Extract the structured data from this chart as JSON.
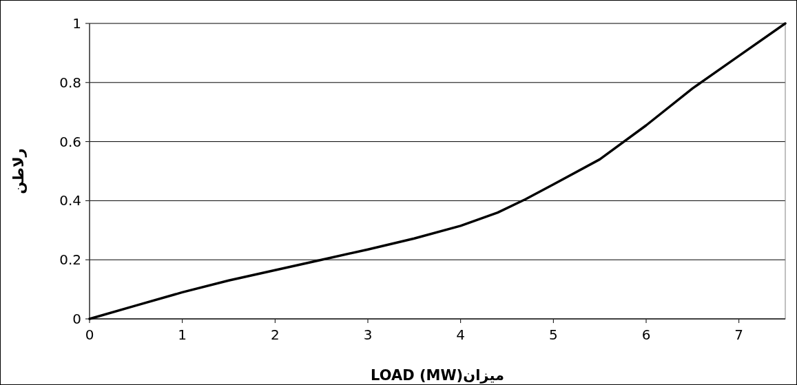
{
  "chart_data": {
    "type": "line",
    "xlabel": "LOAD (MW)میزان",
    "ylabel": "رلاطن",
    "x": [
      0,
      0.5,
      1,
      1.5,
      2,
      2.5,
      3,
      3.5,
      4,
      4.4,
      4.7,
      5,
      5.5,
      6,
      6.5,
      7,
      7.5
    ],
    "series": [
      {
        "color": "#000000",
        "values": [
          0,
          0.045,
          0.09,
          0.13,
          0.165,
          0.2,
          0.235,
          0.272,
          0.315,
          0.36,
          0.405,
          0.455,
          0.54,
          0.655,
          0.78,
          0.89,
          1.0
        ]
      }
    ],
    "xlim": [
      0,
      7.5
    ],
    "xticks": [
      0,
      1,
      2,
      3,
      4,
      5,
      6,
      7
    ],
    "ylim": [
      0,
      1
    ],
    "yticks": [
      0,
      0.2,
      0.4,
      0.6,
      0.8,
      1
    ],
    "grid": "y",
    "marker": "none",
    "line_style": "solid"
  }
}
